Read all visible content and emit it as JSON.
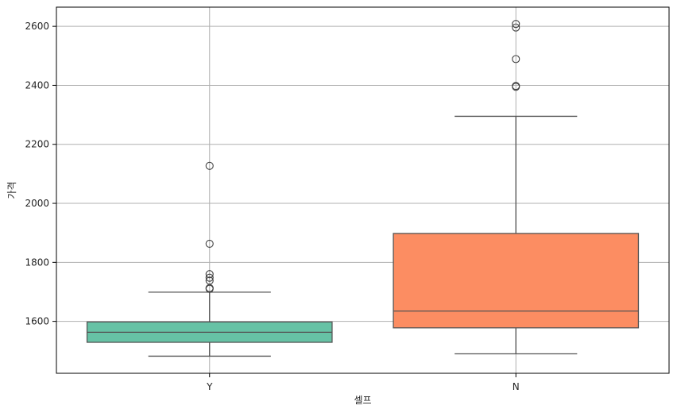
{
  "chart_data": {
    "type": "box",
    "xlabel": "셀프",
    "ylabel": "가격",
    "categories": [
      "Y",
      "N"
    ],
    "ylim": [
      1424,
      2665
    ],
    "yticks": [
      1600,
      1800,
      2000,
      2200,
      2400,
      2600
    ],
    "grid": true,
    "boxes": [
      {
        "category": "Y",
        "whisker_low": 1482,
        "q1": 1529,
        "median": 1563,
        "q3": 1598,
        "whisker_high": 1699,
        "outliers": [
          1710,
          1713,
          1738,
          1748,
          1760,
          1863,
          2127
        ],
        "color": "#66c2a5"
      },
      {
        "category": "N",
        "whisker_low": 1490,
        "q1": 1578,
        "median": 1635,
        "q3": 1898,
        "whisker_high": 2295,
        "outliers": [
          2395,
          2398,
          2489,
          2596,
          2608
        ],
        "color": "#fc8d62"
      }
    ]
  }
}
